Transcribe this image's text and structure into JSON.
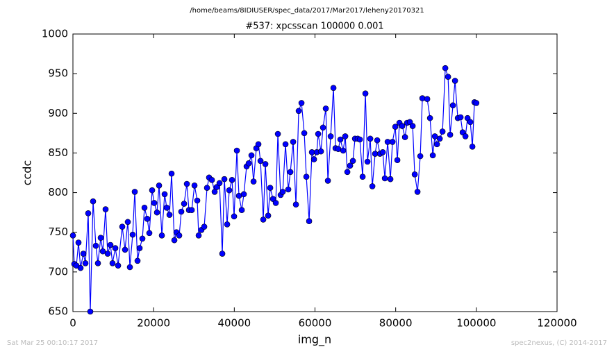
{
  "chart_data": {
    "type": "line",
    "suptitle": "/home/beams/8IDIUSER/spec_data/2017/Mar2017/leheny20170321",
    "title": "#537: xpcsscan 100000 0.001",
    "x_label": "img_n",
    "y_label": "ccdc",
    "footer_left": "Sat Mar 25 00:10:17 2017",
    "footer_right": "spec2nexus, (C) 2014-2017",
    "color": "#0000ff",
    "marker": true,
    "xlim": [
      0,
      120000
    ],
    "xticks": [
      0,
      20000,
      40000,
      60000,
      80000,
      100000,
      120000
    ],
    "ylim": [
      650,
      1000
    ],
    "yticks": [
      650,
      700,
      750,
      800,
      850,
      900,
      950,
      1000
    ],
    "x": [
      0,
      344,
      861,
      1378,
      1894,
      2583,
      3100,
      3788,
      4305,
      4994,
      5683,
      6199,
      6888,
      7405,
      8093,
      8610,
      9299,
      9815,
      10504,
      11193,
      12226,
      12915,
      13604,
      14120,
      14809,
      15326,
      16015,
      16531,
      17220,
      17737,
      18425,
      18942,
      19631,
      20147,
      20836,
      21353,
      22042,
      22730,
      23247,
      23936,
      24452,
      25141,
      25658,
      26347,
      26863,
      27552,
      28241,
      28757,
      29446,
      30135,
      30824,
      31168,
      31857,
      32546,
      33235,
      33751,
      34440,
      35129,
      35645,
      36334,
      37023,
      37540,
      38228,
      38745,
      39434,
      39950,
      40639,
      41156,
      41845,
      42361,
      43050,
      43567,
      44255,
      44772,
      45461,
      45977,
      46494,
      47183,
      47699,
      48388,
      48905,
      49594,
      50282,
      50799,
      51488,
      52004,
      52693,
      53382,
      53899,
      54587,
      55276,
      55965,
      56654,
      57343,
      57859,
      58548,
      59237,
      59753,
      60442,
      60786,
      61475,
      61992,
      62681,
      63197,
      63886,
      64575,
      65092,
      65780,
      66297,
      66986,
      67502,
      68019,
      68708,
      69397,
      69913,
      70602,
      71119,
      71807,
      72496,
      73013,
      73702,
      74218,
      74907,
      75424,
      76112,
      76801,
      77318,
      78007,
      78695,
      79212,
      79901,
      80417,
      80934,
      81623,
      82312,
      82828,
      83517,
      84206,
      84722,
      85411,
      86100,
      86617,
      87822,
      88511,
      89200,
      89716,
      90233,
      90922,
      91610,
      92299,
      92988,
      93505,
      94193,
      94710,
      95399,
      96088,
      96604,
      97293,
      97810,
      98498,
      99015,
      99532,
      100000
    ],
    "values": [
      746,
      710,
      708,
      737,
      705,
      723,
      711,
      774,
      650,
      789,
      733,
      711,
      743,
      726,
      779,
      723,
      734,
      711,
      730,
      708,
      757,
      728,
      763,
      706,
      747,
      801,
      714,
      730,
      742,
      781,
      767,
      749,
      803,
      787,
      775,
      809,
      746,
      798,
      781,
      772,
      824,
      740,
      750,
      746,
      776,
      786,
      811,
      778,
      778,
      809,
      790,
      746,
      753,
      757,
      806,
      819,
      816,
      801,
      807,
      812,
      723,
      817,
      760,
      803,
      816,
      770,
      853,
      796,
      778,
      798,
      833,
      837,
      847,
      814,
      856,
      861,
      840,
      766,
      836,
      771,
      806,
      792,
      787,
      874,
      797,
      801,
      861,
      804,
      826,
      864,
      785,
      903,
      913,
      875,
      820,
      764,
      851,
      842,
      851,
      874,
      852,
      882,
      906,
      815,
      871,
      932,
      856,
      855,
      867,
      853,
      871,
      826,
      834,
      840,
      868,
      868,
      867,
      820,
      925,
      839,
      868,
      808,
      849,
      866,
      849,
      851,
      818,
      864,
      817,
      864,
      883,
      841,
      888,
      884,
      870,
      888,
      889,
      884,
      823,
      801,
      846,
      919,
      918,
      894,
      847,
      871,
      861,
      868,
      877,
      957,
      946,
      873,
      910,
      941,
      894,
      895,
      876,
      871,
      894,
      889,
      858,
      914,
      913
    ]
  }
}
